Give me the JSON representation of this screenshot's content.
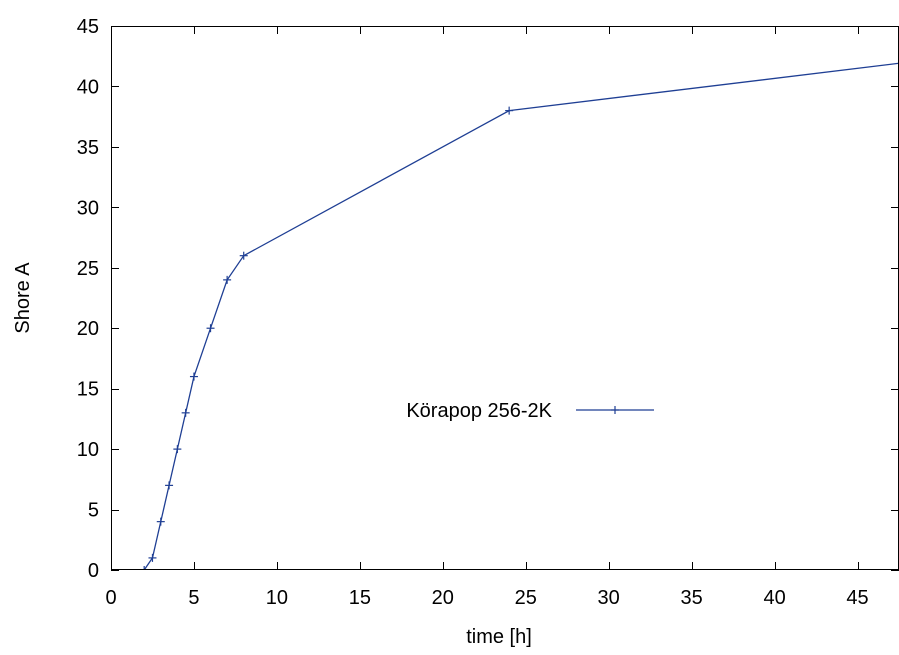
{
  "chart_data": {
    "type": "line",
    "title": "",
    "xlabel": "time [h]",
    "ylabel": "Shore A",
    "xlim": [
      0,
      47.5
    ],
    "ylim": [
      0,
      45
    ],
    "xticks": [
      0,
      5,
      10,
      15,
      20,
      25,
      30,
      35,
      40,
      45
    ],
    "yticks": [
      0,
      5,
      10,
      15,
      20,
      25,
      30,
      35,
      40,
      45
    ],
    "grid": false,
    "legend_position": "center",
    "series": [
      {
        "name": "Körapop 256-2K",
        "color": "#1f3f94",
        "marker": "plus",
        "x": [
          2,
          2.5,
          3,
          3.5,
          4,
          4.5,
          5,
          6,
          7,
          8,
          24,
          48
        ],
        "y": [
          0,
          1,
          4,
          7,
          10,
          13,
          16,
          20,
          24,
          26,
          38,
          42
        ]
      }
    ]
  }
}
